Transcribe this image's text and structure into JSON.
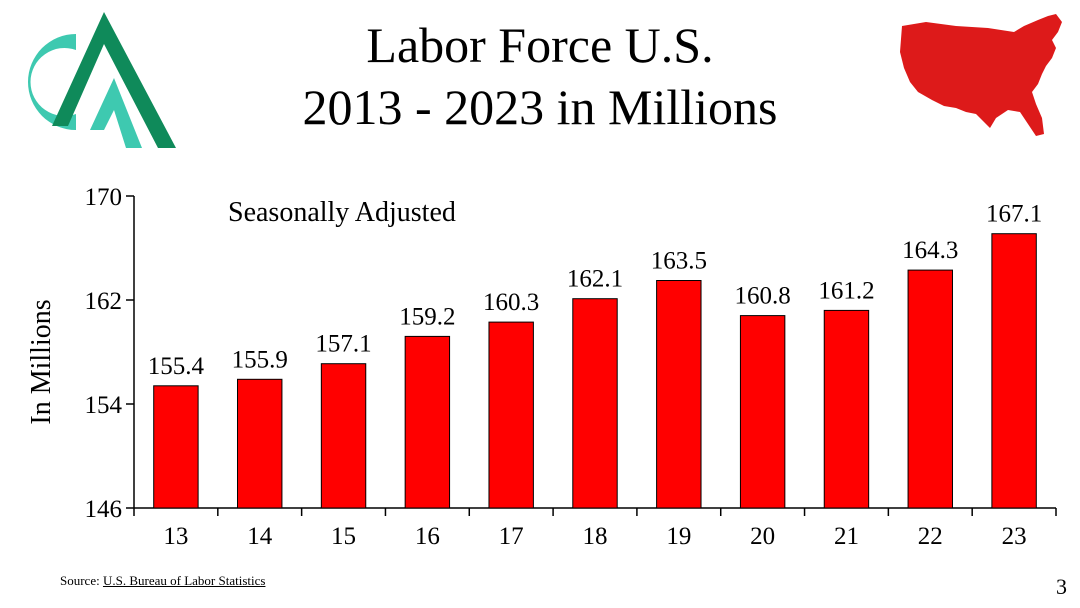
{
  "slide": {
    "title_line1": "Labor Force U.S.",
    "title_line2": "2013 - 2023 in Millions",
    "source_label": "Source:",
    "source_link": "U.S. Bureau of Labor Statistics",
    "page_number": "3"
  },
  "colors": {
    "bar": "#ff0000",
    "map": "#dd1a1a",
    "logo_teal": "#3ec9b0",
    "logo_green": "#0f8a5a"
  },
  "icons": {
    "logo": "company-logo",
    "map": "us-map-icon"
  },
  "chart_data": {
    "type": "bar",
    "categories": [
      "13",
      "14",
      "15",
      "16",
      "17",
      "18",
      "19",
      "20",
      "21",
      "22",
      "23"
    ],
    "values": [
      155.4,
      155.9,
      157.1,
      159.2,
      160.3,
      162.1,
      163.5,
      160.8,
      161.2,
      164.3,
      167.1
    ],
    "value_labels": [
      "155.4",
      "155.9",
      "157.1",
      "159.2",
      "160.3",
      "162.1",
      "163.5",
      "160.8",
      "161.2",
      "164.3",
      "167.1"
    ],
    "annotation": "Seasonally Adjusted",
    "ylabel": "In Millions",
    "xlabel": "",
    "ylim": [
      146,
      170
    ],
    "yticks": [
      146,
      154,
      162,
      170
    ],
    "ytick_labels": [
      "146",
      "154",
      "162",
      "170"
    ],
    "grid": false,
    "legend": "none"
  }
}
